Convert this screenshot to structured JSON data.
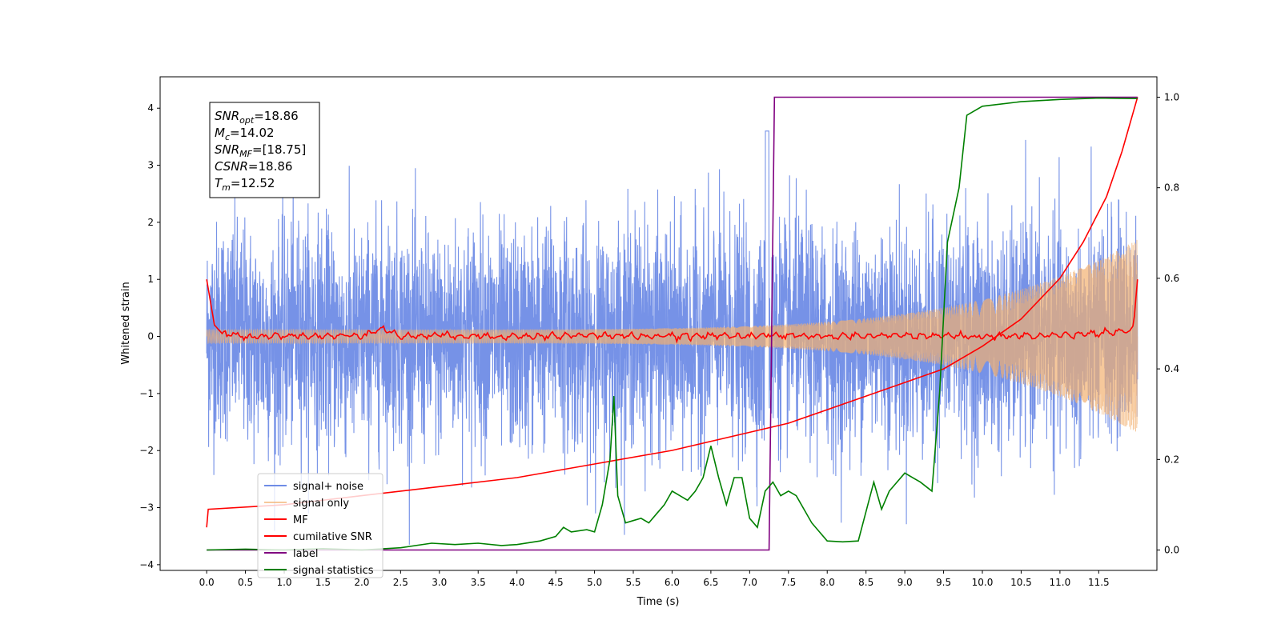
{
  "chart_data": {
    "type": "line",
    "xlabel": "Time (s)",
    "ylabel": "Whitened strain",
    "xlim": [
      -0.6,
      12.25
    ],
    "ylim": [
      -4.1,
      4.55
    ],
    "ylim_right": [
      -0.045,
      1.045
    ],
    "x_ticks": [
      "0.0",
      "0.5",
      "1.0",
      "1.5",
      "2.0",
      "2.5",
      "3.0",
      "3.5",
      "4.0",
      "4.5",
      "5.0",
      "5.5",
      "6.0",
      "6.5",
      "7.0",
      "7.5",
      "8.0",
      "8.5",
      "9.0",
      "9.5",
      "10.0",
      "10.5",
      "11.0",
      "11.5"
    ],
    "y_ticks_left": [
      "4",
      "3",
      "2",
      "1",
      "0",
      "−1",
      "−2",
      "−3",
      "−4"
    ],
    "y_ticks_right": [
      "1.0",
      "0.8",
      "0.6",
      "0.4",
      "0.2",
      "0.0"
    ],
    "annotation": [
      {
        "base": "SNR",
        "sub": "opt",
        "value": "=18.86"
      },
      {
        "base": "M",
        "sub": "c",
        "value": "=14.02"
      },
      {
        "base": "SNR",
        "sub": "MF",
        "value": "=[18.75]"
      },
      {
        "base": "CSNR",
        "sub": "",
        "value": "=18.86"
      },
      {
        "base": "T",
        "sub": "m",
        "value": "=12.52"
      }
    ],
    "legend": {
      "placement": "lower-left",
      "entries": [
        "signal+ noise",
        "signal only",
        "MF",
        "cumilative SNR",
        "label",
        "signal statistics"
      ]
    },
    "series": [
      {
        "name": "signal+ noise",
        "axis": "left",
        "color": "#6f8ce6",
        "kind": "noise",
        "x_range": [
          0,
          12.0
        ],
        "envelope_start": 1.7,
        "envelope_end": 2.6
      },
      {
        "name": "signal only",
        "axis": "left",
        "color": "#f2b070",
        "kind": "chirp",
        "x_range": [
          0,
          12.0
        ],
        "amplitude_start": 0.12,
        "amplitude_end": 1.7
      },
      {
        "name": "MF",
        "axis": "left",
        "color": "#ff0000",
        "kind": "matched-filter",
        "points": [
          [
            0.0,
            1.0
          ],
          [
            0.05,
            0.6
          ],
          [
            0.1,
            0.2
          ],
          [
            0.2,
            0.05
          ],
          [
            0.5,
            0.0
          ],
          [
            1.0,
            0.02
          ],
          [
            1.5,
            0.0
          ],
          [
            2.0,
            0.02
          ],
          [
            2.25,
            0.15
          ],
          [
            2.5,
            0.0
          ],
          [
            3.0,
            0.02
          ],
          [
            4.0,
            0.0
          ],
          [
            5.0,
            0.02
          ],
          [
            6.0,
            0.0
          ],
          [
            7.0,
            0.02
          ],
          [
            8.0,
            0.0
          ],
          [
            9.0,
            0.02
          ],
          [
            10.0,
            0.0
          ],
          [
            11.0,
            0.02
          ],
          [
            11.9,
            0.1
          ],
          [
            11.95,
            0.2
          ],
          [
            12.0,
            1.0
          ]
        ]
      },
      {
        "name": "cumilative SNR",
        "axis": "right",
        "color": "#ff0000",
        "points": [
          [
            0.0,
            0.05
          ],
          [
            0.02,
            0.09
          ],
          [
            1.0,
            0.1
          ],
          [
            2.0,
            0.12
          ],
          [
            3.0,
            0.14
          ],
          [
            4.0,
            0.16
          ],
          [
            5.0,
            0.19
          ],
          [
            6.0,
            0.22
          ],
          [
            7.0,
            0.26
          ],
          [
            7.5,
            0.28
          ],
          [
            8.0,
            0.31
          ],
          [
            8.5,
            0.34
          ],
          [
            9.0,
            0.37
          ],
          [
            9.5,
            0.4
          ],
          [
            10.0,
            0.45
          ],
          [
            10.5,
            0.51
          ],
          [
            11.0,
            0.6
          ],
          [
            11.3,
            0.68
          ],
          [
            11.6,
            0.78
          ],
          [
            11.8,
            0.88
          ],
          [
            12.0,
            1.0
          ]
        ]
      },
      {
        "name": "label",
        "axis": "right",
        "color": "#800080",
        "points": [
          [
            0.0,
            0.0
          ],
          [
            7.25,
            0.0
          ],
          [
            7.32,
            1.0
          ],
          [
            12.0,
            1.0
          ]
        ]
      },
      {
        "name": "signal statistics",
        "axis": "right",
        "color": "#008000",
        "points": [
          [
            0.0,
            0.0
          ],
          [
            0.5,
            0.002
          ],
          [
            1.0,
            0.0
          ],
          [
            1.5,
            0.003
          ],
          [
            2.0,
            0.0
          ],
          [
            2.5,
            0.005
          ],
          [
            2.9,
            0.015
          ],
          [
            3.2,
            0.012
          ],
          [
            3.5,
            0.015
          ],
          [
            3.8,
            0.01
          ],
          [
            4.0,
            0.012
          ],
          [
            4.3,
            0.02
          ],
          [
            4.5,
            0.03
          ],
          [
            4.6,
            0.05
          ],
          [
            4.7,
            0.04
          ],
          [
            4.9,
            0.045
          ],
          [
            5.0,
            0.04
          ],
          [
            5.1,
            0.1
          ],
          [
            5.2,
            0.2
          ],
          [
            5.25,
            0.34
          ],
          [
            5.3,
            0.12
          ],
          [
            5.4,
            0.06
          ],
          [
            5.5,
            0.065
          ],
          [
            5.6,
            0.07
          ],
          [
            5.7,
            0.06
          ],
          [
            5.8,
            0.08
          ],
          [
            5.9,
            0.1
          ],
          [
            6.0,
            0.13
          ],
          [
            6.1,
            0.12
          ],
          [
            6.2,
            0.11
          ],
          [
            6.3,
            0.13
          ],
          [
            6.4,
            0.16
          ],
          [
            6.5,
            0.23
          ],
          [
            6.6,
            0.16
          ],
          [
            6.7,
            0.1
          ],
          [
            6.8,
            0.16
          ],
          [
            6.9,
            0.16
          ],
          [
            7.0,
            0.07
          ],
          [
            7.1,
            0.05
          ],
          [
            7.2,
            0.13
          ],
          [
            7.3,
            0.15
          ],
          [
            7.4,
            0.12
          ],
          [
            7.5,
            0.13
          ],
          [
            7.6,
            0.12
          ],
          [
            7.8,
            0.06
          ],
          [
            8.0,
            0.02
          ],
          [
            8.2,
            0.018
          ],
          [
            8.4,
            0.02
          ],
          [
            8.6,
            0.15
          ],
          [
            8.7,
            0.09
          ],
          [
            8.8,
            0.13
          ],
          [
            9.0,
            0.17
          ],
          [
            9.2,
            0.15
          ],
          [
            9.35,
            0.13
          ],
          [
            9.45,
            0.35
          ],
          [
            9.55,
            0.68
          ],
          [
            9.7,
            0.8
          ],
          [
            9.8,
            0.96
          ],
          [
            10.0,
            0.98
          ],
          [
            10.5,
            0.99
          ],
          [
            11.0,
            0.995
          ],
          [
            11.5,
            0.998
          ],
          [
            12.0,
            0.997
          ]
        ]
      }
    ]
  }
}
